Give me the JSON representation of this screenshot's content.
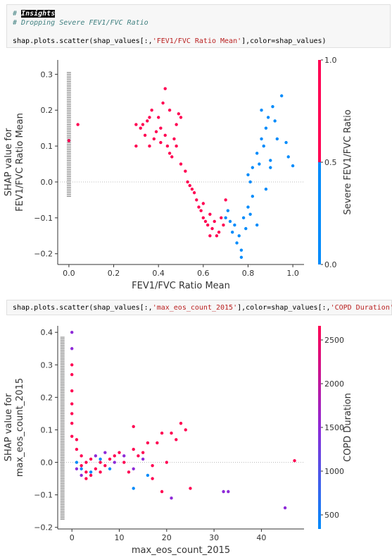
{
  "cell1": {
    "line1_prefix": "# ",
    "line1_word": "Insights",
    "line2": "# Dropping Severe FEV1/FVC Ratio",
    "line3_a": "shap.plots.scatter(shap_values[:,",
    "line3_str": "'FEV1/FVC Ratio Mean'",
    "line3_b": "],color=shap_values)"
  },
  "cell2": {
    "code_a": "shap.plots.scatter(shap_values[:,",
    "code_str1": "'max_eos_count_2015'",
    "code_b": "],color=shap_values[:,",
    "code_str2": "'COPD Duration'",
    "code_c": "])"
  },
  "colors": {
    "red": "#ff0052",
    "blue": "#008bfb",
    "purple": "#8e2ad8",
    "gray": "#888888"
  },
  "chart_data": [
    {
      "type": "scatter",
      "xlabel": "FEV1/FVC Ratio Mean",
      "ylabel_line1": "SHAP value for",
      "ylabel_line2": "FEV1/FVC Ratio Mean",
      "colorbar_label": "Severe FEV1/FVC Ratio",
      "colorbar_ticks": [
        "1.0",
        "0.5",
        "0.0"
      ],
      "xlim": [
        -0.05,
        1.05
      ],
      "ylim": [
        -0.23,
        0.34
      ],
      "xticks": [
        "0.0",
        "0.2",
        "0.4",
        "0.6",
        "0.8",
        "1.0"
      ],
      "yticks": [
        "−0.2",
        "−0.1",
        "0.0",
        "0.1",
        "0.2",
        "0.3"
      ],
      "series": [
        {
          "color_value": 1,
          "points": [
            [
              0.0,
              0.115
            ],
            [
              0.04,
              0.16
            ],
            [
              0.3,
              0.16
            ],
            [
              0.3,
              0.1
            ],
            [
              0.32,
              0.15
            ],
            [
              0.33,
              0.16
            ],
            [
              0.35,
              0.17
            ],
            [
              0.36,
              0.18
            ],
            [
              0.37,
              0.2
            ],
            [
              0.38,
              0.12
            ],
            [
              0.4,
              0.18
            ],
            [
              0.41,
              0.15
            ],
            [
              0.42,
              0.22
            ],
            [
              0.43,
              0.13
            ],
            [
              0.44,
              0.1
            ],
            [
              0.45,
              0.2
            ],
            [
              0.46,
              0.07
            ],
            [
              0.47,
              0.12
            ],
            [
              0.48,
              0.1
            ],
            [
              0.49,
              0.19
            ],
            [
              0.5,
              0.18
            ],
            [
              0.5,
              0.05
            ],
            [
              0.52,
              0.03
            ],
            [
              0.53,
              0.0
            ],
            [
              0.55,
              -0.02
            ],
            [
              0.56,
              -0.03
            ],
            [
              0.57,
              -0.05
            ],
            [
              0.58,
              -0.07
            ],
            [
              0.59,
              -0.08
            ],
            [
              0.6,
              -0.1
            ],
            [
              0.61,
              -0.11
            ],
            [
              0.62,
              -0.12
            ],
            [
              0.63,
              -0.09
            ],
            [
              0.64,
              -0.13
            ],
            [
              0.65,
              -0.11
            ],
            [
              0.66,
              -0.15
            ],
            [
              0.67,
              -0.14
            ],
            [
              0.68,
              -0.1
            ],
            [
              0.69,
              -0.12
            ],
            [
              0.7,
              -0.05
            ],
            [
              0.43,
              0.26
            ],
            [
              0.39,
              0.14
            ],
            [
              0.36,
              0.1
            ],
            [
              0.45,
              0.08
            ],
            [
              0.48,
              0.16
            ],
            [
              0.41,
              0.11
            ],
            [
              0.34,
              0.13
            ],
            [
              0.54,
              -0.01
            ],
            [
              0.6,
              -0.06
            ],
            [
              0.63,
              -0.15
            ]
          ]
        },
        {
          "color_value": 0,
          "points": [
            [
              0.7,
              -0.1
            ],
            [
              0.71,
              -0.08
            ],
            [
              0.72,
              -0.11
            ],
            [
              0.73,
              -0.14
            ],
            [
              0.74,
              -0.12
            ],
            [
              0.75,
              -0.17
            ],
            [
              0.76,
              -0.15
            ],
            [
              0.77,
              -0.19
            ],
            [
              0.78,
              -0.1
            ],
            [
              0.79,
              -0.13
            ],
            [
              0.8,
              -0.07
            ],
            [
              0.81,
              -0.09
            ],
            [
              0.82,
              -0.04
            ],
            [
              0.77,
              -0.21
            ],
            [
              0.8,
              0.02
            ],
            [
              0.82,
              0.04
            ],
            [
              0.84,
              0.08
            ],
            [
              0.85,
              0.05
            ],
            [
              0.86,
              0.12
            ],
            [
              0.87,
              0.1
            ],
            [
              0.88,
              0.15
            ],
            [
              0.89,
              0.18
            ],
            [
              0.9,
              0.06
            ],
            [
              0.91,
              0.21
            ],
            [
              0.92,
              0.17
            ],
            [
              0.93,
              0.12
            ],
            [
              0.95,
              0.24
            ],
            [
              0.97,
              0.11
            ],
            [
              0.98,
              0.07
            ],
            [
              1.0,
              0.045
            ],
            [
              0.84,
              -0.12
            ],
            [
              0.81,
              0.0
            ],
            [
              0.86,
              0.2
            ],
            [
              0.88,
              -0.02
            ],
            [
              0.9,
              0.04
            ]
          ]
        }
      ],
      "gray_band_x": 0.0
    },
    {
      "type": "scatter",
      "xlabel": "max_eos_count_2015",
      "ylabel_line1": "SHAP value for",
      "ylabel_line2": "max_eos_count_2015",
      "colorbar_label": "COPD Duration",
      "colorbar_ticks": [
        "2500",
        "2000",
        "1500",
        "1000",
        "500"
      ],
      "xlim": [
        -3,
        49
      ],
      "ylim": [
        -0.205,
        0.42
      ],
      "xticks": [
        "0",
        "10",
        "20",
        "30",
        "40"
      ],
      "yticks": [
        "−0.2",
        "−0.1",
        "0.0",
        "0.1",
        "0.2",
        "0.3",
        "0.4"
      ],
      "series": [
        {
          "color_value": "high",
          "points": [
            [
              0,
              0.3
            ],
            [
              0,
              0.27
            ],
            [
              0,
              0.22
            ],
            [
              0,
              0.18
            ],
            [
              0,
              0.15
            ],
            [
              0,
              0.12
            ],
            [
              0,
              0.08
            ],
            [
              1,
              0.07
            ],
            [
              1,
              0.04
            ],
            [
              2,
              0.02
            ],
            [
              2,
              -0.01
            ],
            [
              3,
              0.0
            ],
            [
              3,
              -0.03
            ],
            [
              4,
              -0.04
            ],
            [
              4,
              0.01
            ],
            [
              5,
              -0.02
            ],
            [
              6,
              0.0
            ],
            [
              7,
              -0.01
            ],
            [
              8,
              0.01
            ],
            [
              9,
              0.02
            ],
            [
              10,
              0.03
            ],
            [
              11,
              0.0
            ],
            [
              12,
              -0.03
            ],
            [
              13,
              0.04
            ],
            [
              14,
              0.02
            ],
            [
              15,
              0.03
            ],
            [
              16,
              0.06
            ],
            [
              17,
              -0.01
            ],
            [
              18,
              0.06
            ],
            [
              19,
              0.09
            ],
            [
              20,
              0.0
            ],
            [
              21,
              0.09
            ],
            [
              22,
              0.07
            ],
            [
              23,
              0.12
            ],
            [
              24,
              0.1
            ],
            [
              25,
              -0.08
            ],
            [
              47,
              0.005
            ],
            [
              13,
              0.11
            ],
            [
              19,
              -0.09
            ],
            [
              17,
              -0.05
            ],
            [
              6,
              -0.03
            ],
            [
              3,
              -0.05
            ]
          ]
        },
        {
          "color_value": "mid",
          "points": [
            [
              0,
              0.4
            ],
            [
              0,
              0.35
            ],
            [
              1,
              -0.02
            ],
            [
              2,
              -0.04
            ],
            [
              5,
              0.02
            ],
            [
              7,
              0.03
            ],
            [
              9,
              0.0
            ],
            [
              11,
              0.02
            ],
            [
              13,
              -0.02
            ],
            [
              15,
              0.01
            ],
            [
              21,
              -0.11
            ],
            [
              32,
              -0.09
            ],
            [
              33,
              -0.09
            ],
            [
              45,
              -0.14
            ]
          ]
        },
        {
          "color_value": "low",
          "points": [
            [
              1,
              0.0
            ],
            [
              2,
              -0.02
            ],
            [
              4,
              -0.03
            ],
            [
              6,
              0.01
            ],
            [
              8,
              -0.02
            ],
            [
              13,
              -0.08
            ],
            [
              16,
              -0.04
            ]
          ]
        }
      ],
      "gray_band_x": -2
    }
  ]
}
